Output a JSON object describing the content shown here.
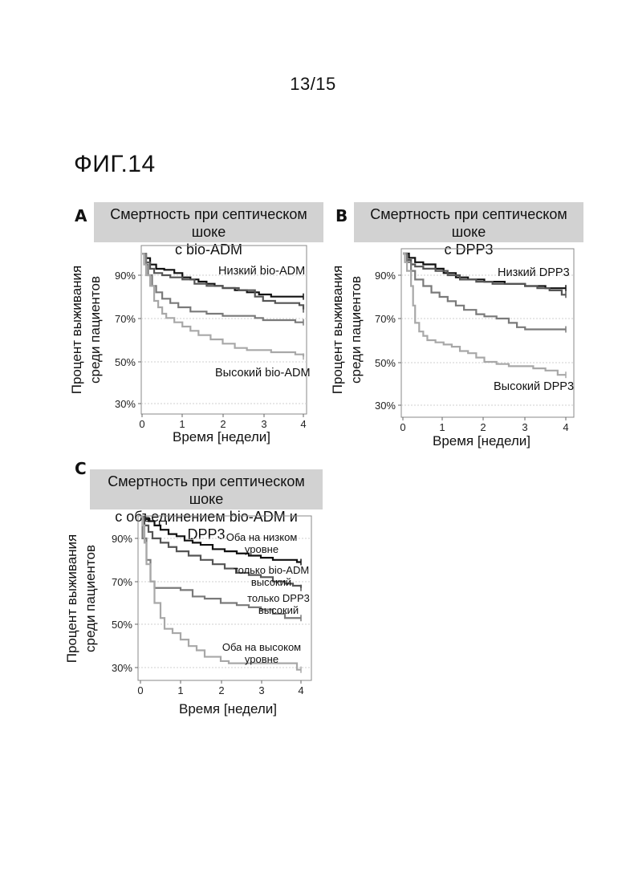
{
  "page_number": "13/15",
  "figure_label": "ФИГ.14",
  "chart_data": [
    {
      "type": "line",
      "panel": "A",
      "title": [
        "Смертность при септическом шоке",
        "с bio-ADM"
      ],
      "xlabel": "Время [недели]",
      "ylabel": [
        "Процент выживания",
        "среди пациентов"
      ],
      "xlim": [
        0,
        4
      ],
      "ylim": [
        27,
        100
      ],
      "xticks": [
        0,
        1,
        2,
        3,
        4
      ],
      "yticks": [
        "30%",
        "50%",
        "70%",
        "90%"
      ],
      "grid": true,
      "series": [
        {
          "name": "Низкий bio-ADM",
          "color": "#111111",
          "x": [
            0,
            0.1,
            0.2,
            0.35,
            0.55,
            0.8,
            1.0,
            1.2,
            1.4,
            1.6,
            1.8,
            2.0,
            2.3,
            2.6,
            2.9,
            3.2,
            3.5,
            3.8,
            4.0
          ],
          "y": [
            100,
            98,
            95,
            93,
            92.5,
            91,
            89,
            88,
            87,
            86,
            85,
            84,
            83,
            82,
            81,
            80,
            80,
            80,
            80
          ]
        },
        {
          "name": "",
          "color": "#555555",
          "x": [
            0,
            0.1,
            0.2,
            0.3,
            0.5,
            0.7,
            1.0,
            1.3,
            1.6,
            2.0,
            2.4,
            2.8,
            3.0,
            3.3,
            3.6,
            3.9,
            4.0
          ],
          "y": [
            100,
            96,
            93,
            91,
            90,
            89,
            88,
            86,
            85,
            84,
            83,
            80,
            78,
            77,
            77,
            76,
            74
          ]
        },
        {
          "name": "",
          "color": "#7a7a7a",
          "x": [
            0,
            0.1,
            0.15,
            0.25,
            0.35,
            0.5,
            0.7,
            0.9,
            1.2,
            1.6,
            2.0,
            2.5,
            2.8,
            3.0,
            3.3,
            3.6,
            3.8,
            4.0
          ],
          "y": [
            100,
            95,
            90,
            85,
            82,
            79,
            77,
            75,
            73,
            72,
            71,
            71,
            70,
            69,
            69,
            69,
            68,
            68
          ]
        },
        {
          "name": "Высокий bio-ADM",
          "color": "#a8a8a8",
          "x": [
            0,
            0.05,
            0.1,
            0.2,
            0.3,
            0.4,
            0.5,
            0.6,
            0.8,
            1.0,
            1.2,
            1.4,
            1.7,
            2.0,
            2.3,
            2.6,
            2.9,
            3.2,
            3.5,
            3.8,
            4.0
          ],
          "y": [
            100,
            95,
            90,
            85,
            78,
            75,
            72,
            70,
            68,
            66,
            64,
            62,
            60,
            58,
            56,
            55,
            55,
            54,
            54,
            53,
            52
          ]
        }
      ]
    },
    {
      "type": "line",
      "panel": "B",
      "title": [
        "Смертность при септическом шоке",
        "с DPP3"
      ],
      "xlabel": "Время [недели]",
      "ylabel": [
        "Процент выживания",
        "среди пациентов"
      ],
      "xlim": [
        0,
        4
      ],
      "ylim": [
        27,
        100
      ],
      "xticks": [
        0,
        1,
        2,
        3,
        4
      ],
      "yticks": [
        "30%",
        "50%",
        "70%",
        "90%"
      ],
      "grid": true,
      "series": [
        {
          "name": "Низкий DPP3",
          "color": "#111111",
          "x": [
            0,
            0.15,
            0.3,
            0.5,
            0.8,
            1.0,
            1.3,
            1.6,
            2.0,
            2.5,
            3.0,
            3.5,
            4.0
          ],
          "y": [
            100,
            98,
            96,
            95,
            93,
            91,
            89,
            88,
            87,
            86,
            85,
            84,
            84
          ]
        },
        {
          "name": "",
          "color": "#555555",
          "x": [
            0,
            0.1,
            0.2,
            0.3,
            0.5,
            0.8,
            1.1,
            1.4,
            1.8,
            2.2,
            2.6,
            3.0,
            3.3,
            3.6,
            3.9,
            4.0
          ],
          "y": [
            100,
            97,
            95,
            94,
            93,
            92,
            90,
            88,
            87,
            86,
            86,
            85,
            84,
            83,
            81,
            81
          ]
        },
        {
          "name": "",
          "color": "#7a7a7a",
          "x": [
            0,
            0.1,
            0.2,
            0.3,
            0.5,
            0.7,
            0.9,
            1.1,
            1.3,
            1.5,
            1.8,
            2.0,
            2.3,
            2.6,
            2.8,
            3.0,
            3.3,
            3.6,
            3.9,
            4.0
          ],
          "y": [
            100,
            96,
            92,
            88,
            85,
            82,
            80,
            78,
            76,
            74,
            72,
            71,
            70,
            68,
            66,
            65,
            65,
            65,
            65,
            65
          ]
        },
        {
          "name": "Высокий DPP3",
          "color": "#a8a8a8",
          "x": [
            0,
            0.05,
            0.1,
            0.2,
            0.25,
            0.3,
            0.4,
            0.5,
            0.6,
            0.8,
            1.0,
            1.2,
            1.4,
            1.6,
            1.8,
            2.0,
            2.3,
            2.6,
            2.9,
            3.2,
            3.5,
            3.8,
            4.0
          ],
          "y": [
            100,
            96,
            92,
            85,
            76,
            68,
            64,
            62,
            60,
            59,
            58,
            57,
            55,
            54,
            52,
            50,
            49,
            48,
            48,
            47,
            46,
            44,
            44
          ]
        }
      ]
    },
    {
      "type": "line",
      "panel": "C",
      "title": [
        "Смертность при септическом шоке",
        "с объединением bio-ADM и DPP3"
      ],
      "xlabel": "Время [недели]",
      "ylabel": [
        "Процент выживания",
        "среди пациентов"
      ],
      "xlim": [
        0,
        4
      ],
      "ylim": [
        27,
        100
      ],
      "xticks": [
        0,
        1,
        2,
        3,
        4
      ],
      "yticks": [
        "30%",
        "50%",
        "70%",
        "90%"
      ],
      "grid": true,
      "series": [
        {
          "name": "Оба на низком уровне",
          "color": "#111111",
          "x": [
            0,
            0.1,
            0.2,
            0.35,
            0.5,
            0.7,
            0.9,
            1.1,
            1.3,
            1.5,
            1.8,
            2.1,
            2.4,
            2.7,
            3.0,
            3.3,
            3.6,
            3.9,
            4.0
          ],
          "y": [
            100,
            99,
            98,
            96,
            94,
            92,
            91,
            89,
            88,
            87,
            85,
            84,
            83,
            82,
            81,
            80,
            80,
            79,
            79
          ]
        },
        {
          "name": "только bio-ADM высокий",
          "color": "#555555",
          "x": [
            0,
            0.1,
            0.2,
            0.3,
            0.5,
            0.7,
            0.9,
            1.2,
            1.5,
            1.8,
            2.1,
            2.4,
            2.7,
            3.0,
            3.3,
            3.6,
            3.8,
            4.0
          ],
          "y": [
            100,
            96,
            93,
            90,
            88,
            86,
            84,
            82,
            80,
            78,
            76,
            74,
            73,
            72,
            70,
            69,
            68,
            67
          ]
        },
        {
          "name": "только DPP3 высокий",
          "color": "#7a7a7a",
          "x": [
            0,
            0.05,
            0.15,
            0.25,
            0.35,
            0.5,
            1.0,
            1.3,
            1.6,
            2.0,
            2.4,
            2.7,
            3.0,
            3.3,
            3.6,
            4.0
          ],
          "y": [
            100,
            90,
            80,
            70,
            67,
            67,
            66,
            63,
            62,
            60,
            59,
            58,
            57,
            55,
            53,
            53
          ]
        },
        {
          "name": "Оба на высоком уровне",
          "color": "#a8a8a8",
          "x": [
            0,
            0.05,
            0.1,
            0.15,
            0.25,
            0.35,
            0.5,
            0.6,
            0.8,
            1.0,
            1.2,
            1.4,
            1.6,
            2.0,
            2.2,
            2.6,
            3.0,
            3.3,
            3.6,
            3.9,
            4.0
          ],
          "y": [
            100,
            96,
            88,
            78,
            70,
            60,
            53,
            48,
            46,
            43,
            40,
            38,
            35,
            33,
            32,
            32,
            32,
            32,
            32,
            29,
            29
          ]
        }
      ],
      "annotations": [
        {
          "text": [
            "Оба на низком",
            "уровне"
          ]
        },
        {
          "text": [
            "только bio-ADM",
            "высокий"
          ]
        },
        {
          "text": [
            "только DPP3",
            "высокий"
          ]
        },
        {
          "text": [
            "Оба на высоком",
            "уровне"
          ]
        }
      ]
    }
  ]
}
